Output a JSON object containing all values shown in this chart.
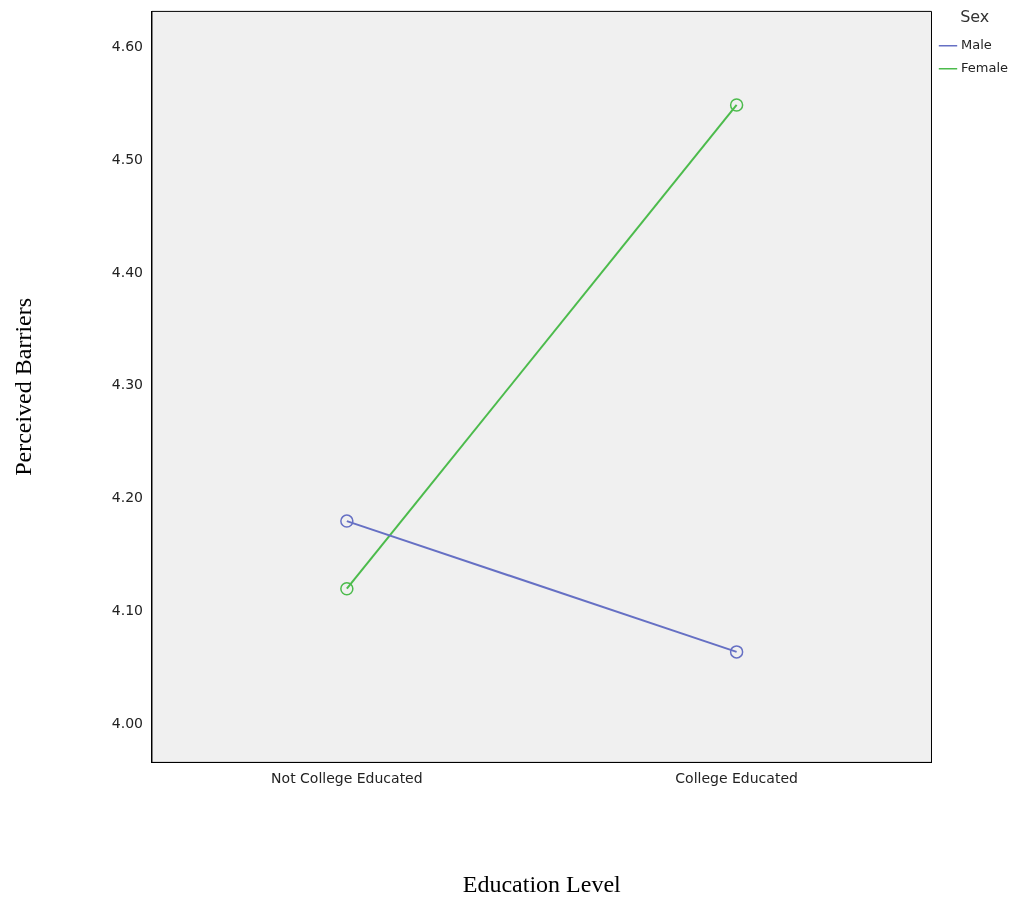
{
  "chart_data": {
    "type": "line",
    "xlabel": "Education Level",
    "ylabel": "Perceived Barriers",
    "legend_title": "Sex",
    "legend": "top right",
    "marker": "circle",
    "categories": [
      "Not College Educated",
      "College Educated"
    ],
    "series": [
      {
        "name": "Male",
        "color": "#6670c4",
        "values": [
          4.18,
          4.064
        ]
      },
      {
        "name": "Female",
        "color": "#4cbb4c",
        "values": [
          4.12,
          4.549
        ]
      }
    ],
    "ylim": [
      3.966,
      4.632
    ],
    "yticks": [
      {
        "value": 4.0,
        "label": "4.00"
      },
      {
        "value": 4.1,
        "label": "4.10"
      },
      {
        "value": 4.2,
        "label": "4.20"
      },
      {
        "value": 4.3,
        "label": "4.30"
      },
      {
        "value": 4.4,
        "label": "4.40"
      },
      {
        "value": 4.5,
        "label": "4.50"
      },
      {
        "value": 4.6,
        "label": "4.60"
      }
    ]
  }
}
